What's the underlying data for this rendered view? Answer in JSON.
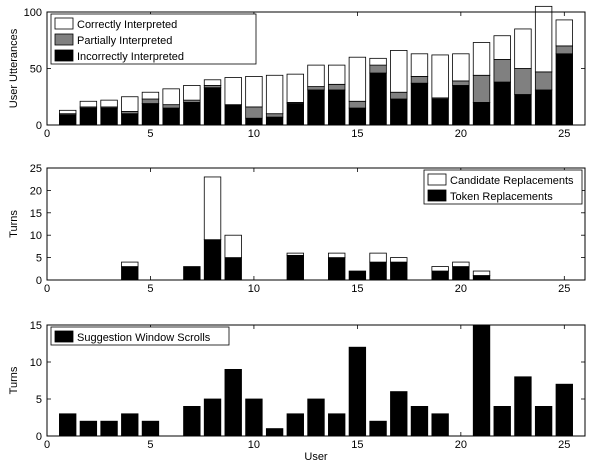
{
  "chart_data": [
    {
      "type": "bar",
      "stacked": true,
      "ylabel": "User Utterances",
      "xlabel": "",
      "xlim": [
        0,
        26
      ],
      "ylim": [
        0,
        100
      ],
      "xticks": [
        0,
        5,
        10,
        15,
        20,
        25
      ],
      "yticks": [
        0,
        50,
        100
      ],
      "legend_position": "top-left",
      "x": [
        1,
        2,
        3,
        4,
        5,
        6,
        7,
        8,
        9,
        10,
        11,
        12,
        13,
        14,
        15,
        16,
        17,
        18,
        19,
        20,
        21,
        22,
        23,
        24,
        25
      ],
      "series": [
        {
          "name": "Correctly Interpreted",
          "color": "#ffffff",
          "values": [
            3,
            5,
            6,
            13,
            6,
            14,
            13,
            5,
            24,
            27,
            34,
            25,
            19,
            17,
            39,
            6,
            37,
            20,
            38,
            24,
            29,
            21,
            35,
            58,
            23
          ]
        },
        {
          "name": "Partially Interpreted",
          "color": "#808080",
          "values": [
            1,
            1,
            1,
            2,
            4,
            3,
            2,
            2,
            0,
            10,
            3,
            1,
            3,
            5,
            6,
            7,
            6,
            6,
            1,
            4,
            24,
            20,
            23,
            16,
            7
          ]
        },
        {
          "name": "Incorrectly Interpreted",
          "color": "#000000",
          "values": [
            9,
            15,
            15,
            10,
            19,
            15,
            20,
            33,
            18,
            6,
            7,
            19,
            31,
            31,
            15,
            46,
            23,
            37,
            23,
            35,
            20,
            38,
            27,
            31,
            63
          ]
        }
      ]
    },
    {
      "type": "bar",
      "stacked": true,
      "ylabel": "Turns",
      "xlabel": "",
      "xlim": [
        0,
        26
      ],
      "ylim": [
        0,
        25
      ],
      "xticks": [
        0,
        5,
        10,
        15,
        20,
        25
      ],
      "yticks": [
        0,
        5,
        10,
        15,
        20,
        25
      ],
      "legend_position": "top-right",
      "x": [
        1,
        2,
        3,
        4,
        5,
        6,
        7,
        8,
        9,
        10,
        11,
        12,
        13,
        14,
        15,
        16,
        17,
        18,
        19,
        20,
        21,
        22,
        23,
        24,
        25
      ],
      "series": [
        {
          "name": "Candidate Replacements",
          "color": "#ffffff",
          "values": [
            0,
            0,
            0,
            1,
            0,
            0,
            0,
            14,
            5,
            0,
            0,
            0.5,
            0,
            1,
            0,
            2,
            1,
            0,
            1,
            1,
            1,
            0,
            0,
            0,
            0
          ]
        },
        {
          "name": "Token Replacements",
          "color": "#000000",
          "values": [
            0,
            0,
            0,
            3,
            0,
            0,
            3,
            9,
            5,
            0,
            0,
            5.5,
            0,
            5,
            2,
            4,
            4,
            0,
            2,
            3,
            1,
            0,
            0,
            0,
            0
          ]
        }
      ]
    },
    {
      "type": "bar",
      "xlabel": "User",
      "ylabel": "Turns",
      "xlim": [
        0,
        26
      ],
      "ylim": [
        0,
        15
      ],
      "xticks": [
        0,
        5,
        10,
        15,
        20,
        25
      ],
      "yticks": [
        0,
        5,
        10,
        15
      ],
      "legend_position": "top-left",
      "x": [
        1,
        2,
        3,
        4,
        5,
        6,
        7,
        8,
        9,
        10,
        11,
        12,
        13,
        14,
        15,
        16,
        17,
        18,
        19,
        20,
        21,
        22,
        23,
        24,
        25
      ],
      "series": [
        {
          "name": "Suggestion Window Scrolls",
          "color": "#000000",
          "values": [
            3,
            2,
            2,
            3,
            2,
            0,
            4,
            5,
            9,
            5,
            1,
            3,
            5,
            3,
            12,
            2,
            6,
            4,
            3,
            0,
            15,
            4,
            8,
            4,
            7
          ]
        }
      ]
    }
  ]
}
